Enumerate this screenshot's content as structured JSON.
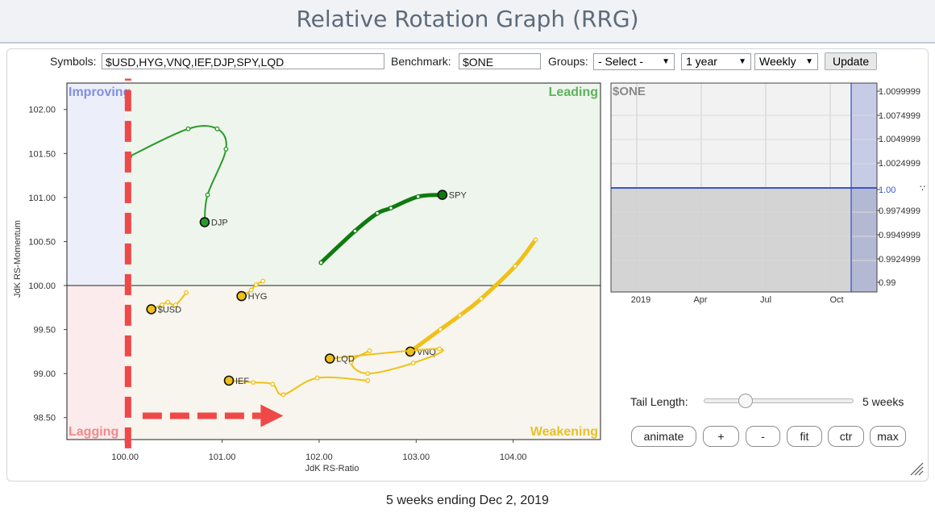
{
  "page": {
    "title": "Relative Rotation Graph (RRG)",
    "footer": "5 weeks ending Dec 2, 2019"
  },
  "controls": {
    "symbols_label": "Symbols:",
    "symbols_value": "$USD,HYG,VNQ,IEF,DJP,SPY,LQD",
    "benchmark_label": "Benchmark:",
    "benchmark_value": "$ONE",
    "groups_label": "Groups:",
    "groups_value": "- Select -",
    "period_value": "1 year",
    "frequency_value": "Weekly",
    "update_label": "Update"
  },
  "tail": {
    "label": "Tail Length:",
    "value_text": "5 weeks",
    "fraction": 0.25
  },
  "buttons": {
    "animate": "animate",
    "plus": "+",
    "minus": "-",
    "fit": "fit",
    "ctr": "ctr",
    "max": "max"
  },
  "colors": {
    "leading_bg": "#eef5ec",
    "improving_bg": "#eceff9",
    "lagging_bg": "#fbebec",
    "weakening_bg": "#f7f5ed",
    "leading_text": "#5cb35c",
    "improving_text": "#8090e0",
    "lagging_text": "#f08a8a",
    "weakening_text": "#e8c02a",
    "green": "#2a9a2a",
    "dark_green": "#0f7a0f",
    "yellow": "#f0c017",
    "annotation_red": "#f04848",
    "benchmark_blue": "#3b55c8"
  },
  "chart_data": [
    {
      "type": "scatter",
      "name": "rrg",
      "xlabel": "JdK RS-Ratio",
      "ylabel": "JdK RS-Momentum",
      "xlim": [
        99.4,
        104.9
      ],
      "ylim": [
        98.25,
        102.3
      ],
      "x_ticks": [
        "100.00",
        "101.00",
        "102.00",
        "103.00",
        "104.00"
      ],
      "y_ticks": [
        "98.50",
        "99.00",
        "99.50",
        "100.00",
        "100.50",
        "101.00",
        "101.50",
        "102.00"
      ],
      "quadrants": {
        "leading": "Leading",
        "improving": "Improving",
        "lagging": "Lagging",
        "weakening": "Weakening"
      },
      "series": [
        {
          "name": "DJP",
          "color": "green",
          "weight": "thin",
          "points": [
            [
              100.05,
              101.47
            ],
            [
              100.65,
              101.78
            ],
            [
              100.95,
              101.78
            ],
            [
              101.04,
              101.55
            ],
            [
              100.85,
              101.03
            ],
            [
              100.82,
              100.72
            ]
          ]
        },
        {
          "name": "SPY",
          "color": "dark_green",
          "weight": "thick",
          "points": [
            [
              102.02,
              100.26
            ],
            [
              102.37,
              100.62
            ],
            [
              102.6,
              100.82
            ],
            [
              102.74,
              100.88
            ],
            [
              103.02,
              101.01
            ],
            [
              103.27,
              101.03
            ]
          ]
        },
        {
          "name": "$USD",
          "color": "yellow",
          "weight": "thin",
          "points": [
            [
              100.63,
              99.92
            ],
            [
              100.52,
              99.78
            ],
            [
              100.44,
              99.81
            ],
            [
              100.38,
              99.78
            ],
            [
              100.27,
              99.73
            ]
          ]
        },
        {
          "name": "HYG",
          "color": "yellow",
          "weight": "thin",
          "points": [
            [
              101.42,
              100.05
            ],
            [
              101.35,
              100.01
            ],
            [
              101.3,
              99.95
            ],
            [
              101.24,
              99.9
            ],
            [
              101.2,
              99.88
            ]
          ]
        },
        {
          "name": "VNQ",
          "color": "yellow",
          "weight": "thick",
          "points": [
            [
              104.23,
              100.52
            ],
            [
              104.02,
              100.22
            ],
            [
              103.67,
              99.85
            ],
            [
              103.45,
              99.66
            ],
            [
              103.25,
              99.5
            ],
            [
              102.94,
              99.25
            ]
          ]
        },
        {
          "name": "LQD",
          "color": "yellow",
          "weight": "thin",
          "points": [
            [
              102.52,
              99.26
            ],
            [
              102.33,
              99.13
            ],
            [
              102.5,
              99.0
            ],
            [
              102.97,
              99.12
            ],
            [
              103.24,
              99.28
            ],
            [
              102.11,
              99.17
            ]
          ]
        },
        {
          "name": "IEF",
          "color": "yellow",
          "weight": "thin",
          "points": [
            [
              102.5,
              98.92
            ],
            [
              101.98,
              98.95
            ],
            [
              101.63,
              98.76
            ],
            [
              101.52,
              98.88
            ],
            [
              101.32,
              98.9
            ],
            [
              101.07,
              98.92
            ]
          ]
        }
      ],
      "annotations": [
        {
          "type": "dashed-vertical",
          "x": 100.03,
          "y_from": 98.15,
          "y_to": 102.35
        },
        {
          "type": "dashed-arrow",
          "x_from": 100.18,
          "x_to": 101.63,
          "y": 98.52
        }
      ]
    },
    {
      "type": "line",
      "name": "benchmark",
      "title": "$ONE",
      "x_ticks": [
        "2019",
        "Apr",
        "Jul",
        "Oct"
      ],
      "y_ticks": [
        "1.0099999",
        "1.0074999",
        "1.0049999",
        "1.0024999",
        "1.00",
        "0.9974999",
        "0.9949999",
        "0.9924999",
        "0.99"
      ],
      "series": [
        {
          "name": "$ONE",
          "value": 1.0
        }
      ]
    }
  ]
}
